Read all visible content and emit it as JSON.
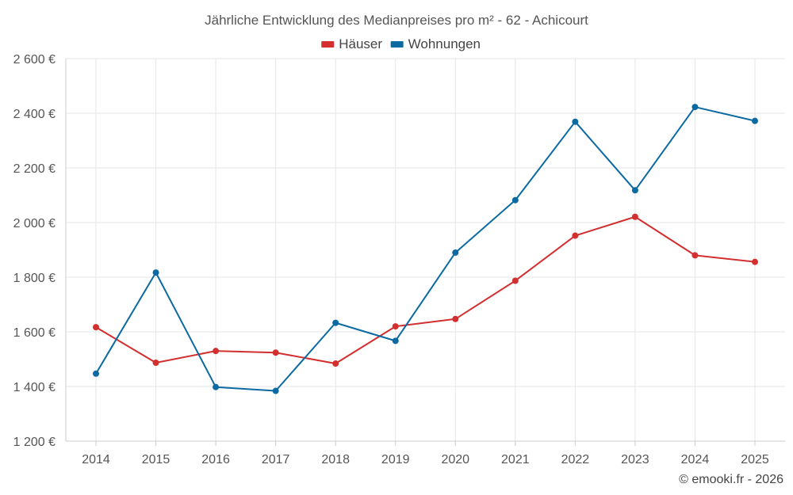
{
  "chart_data": {
    "type": "line",
    "title": "Jährliche Entwicklung des Medianpreises pro m² - 62 - Achicourt",
    "categories": [
      "2014",
      "2015",
      "2016",
      "2017",
      "2018",
      "2019",
      "2020",
      "2021",
      "2022",
      "2023",
      "2024",
      "2025"
    ],
    "series": [
      {
        "name": "Häuser",
        "color": "#d32f2f",
        "values": [
          1617,
          1487,
          1530,
          1524,
          1484,
          1620,
          1647,
          1787,
          1952,
          2021,
          1880,
          1856
        ]
      },
      {
        "name": "Wohnungen",
        "color": "#0a6aa1",
        "values": [
          1447,
          1817,
          1398,
          1384,
          1633,
          1567,
          1890,
          2082,
          2369,
          2118,
          2423,
          2372
        ]
      }
    ],
    "ylim": [
      1200,
      2600
    ],
    "yticks": [
      1200,
      1400,
      1600,
      1800,
      2000,
      2200,
      2400,
      2600
    ],
    "ytick_labels": [
      "1 200 €",
      "1 400 €",
      "1 600 €",
      "1 800 €",
      "2 000 €",
      "2 200 €",
      "2 400 €",
      "2 600 €"
    ],
    "xlabel": "",
    "ylabel": "",
    "grid": true,
    "legend_position": "top-center"
  },
  "credit": "© emooki.fr - 2026"
}
